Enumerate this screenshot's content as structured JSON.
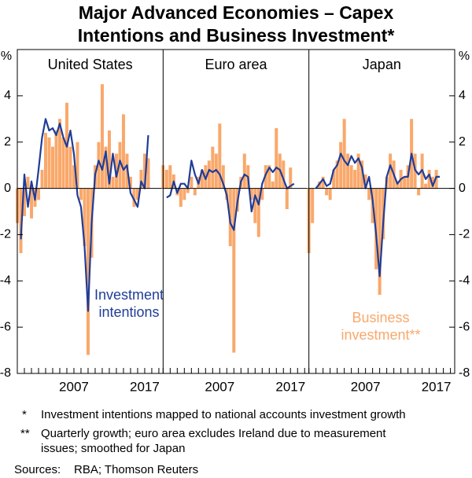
{
  "title": [
    "Major Advanced Economies – Capex",
    "Intentions and Business Investment*"
  ],
  "y_unit": "%",
  "notes": [
    {
      "mark": "*",
      "lines": [
        "Investment intentions mapped to national accounts investment growth"
      ]
    },
    {
      "mark": "**",
      "lines": [
        "Quarterly growth; euro area excludes Ireland due to measurement",
        "issues; smoothed for Japan"
      ]
    }
  ],
  "sources": {
    "label": "Sources:",
    "text": "RBA; Thomson Reuters"
  },
  "chart_data": [
    {
      "type": "combo",
      "title": "United States",
      "x": [
        1999,
        1999.5,
        2000,
        2000.5,
        2001,
        2001.5,
        2002,
        2002.5,
        2003,
        2003.5,
        2004,
        2004.5,
        2005,
        2005.5,
        2006,
        2006.5,
        2007,
        2007.5,
        2008,
        2008.5,
        2009,
        2009.5,
        2010,
        2010.5,
        2011,
        2011.5,
        2012,
        2012.5,
        2013,
        2013.5,
        2014,
        2014.5,
        2015,
        2015.5,
        2016,
        2016.5,
        2017,
        2017.5
      ],
      "xlim": [
        1999,
        2019.6
      ],
      "xticks": [
        2007,
        2017
      ],
      "xticks_minor": [
        1999,
        2000,
        2001,
        2002,
        2003,
        2004,
        2005,
        2006,
        2007,
        2008,
        2009,
        2010,
        2011,
        2012,
        2013,
        2014,
        2015,
        2016,
        2017,
        2018,
        2019
      ],
      "ylim": [
        -8,
        6
      ],
      "yticks": [
        -8,
        -6,
        -4,
        -2,
        0,
        2,
        4
      ],
      "series": [
        {
          "type": "bar",
          "color": "#f9a86b",
          "values": [
            -1.5,
            -2.8,
            -1.2,
            0.5,
            -1.3,
            -0.8,
            -0.5,
            0.8,
            2.4,
            2.2,
            1.8,
            2.5,
            3.0,
            2.2,
            3.7,
            1.8,
            1.0,
            2.0,
            -0.5,
            -2.5,
            -7.2,
            -3.0,
            1.0,
            2.0,
            4.5,
            1.8,
            2.5,
            0.5,
            1.5,
            2.0,
            3.2,
            1.5,
            0.5,
            -0.8,
            -0.5,
            0.8,
            1.5,
            1.3
          ]
        },
        {
          "type": "line",
          "color": "#1f3d99",
          "values": [
            null,
            -2.2,
            0.6,
            -0.8,
            0.3,
            -0.5,
            0.8,
            2.2,
            3.0,
            2.5,
            2.6,
            2.3,
            2.8,
            2.2,
            1.8,
            2.5,
            1.5,
            -0.3,
            -0.8,
            -2.5,
            -5.3,
            -1.5,
            0.6,
            1.2,
            0.8,
            1.6,
            0.2,
            1.5,
            0.5,
            1.2,
            0.8,
            1.0,
            -0.2,
            -0.5,
            -0.8,
            0.3,
            0.0,
            2.3
          ]
        }
      ],
      "annotation": {
        "color": "#1f3d99",
        "lines": [
          "Investment",
          "intentions"
        ]
      }
    },
    {
      "type": "combo",
      "title": "Euro area",
      "x": [
        1999,
        1999.5,
        2000,
        2000.5,
        2001,
        2001.5,
        2002,
        2002.5,
        2003,
        2003.5,
        2004,
        2004.5,
        2005,
        2005.5,
        2006,
        2006.5,
        2007,
        2007.5,
        2008,
        2008.5,
        2009,
        2009.5,
        2010,
        2010.5,
        2011,
        2011.5,
        2012,
        2012.5,
        2013,
        2013.5,
        2014,
        2014.5,
        2015,
        2015.5,
        2016,
        2016.5,
        2017,
        2017.5
      ],
      "xlim": [
        1999,
        2019.6
      ],
      "xticks": [
        2007,
        2017
      ],
      "xticks_minor": [
        1999,
        2000,
        2001,
        2002,
        2003,
        2004,
        2005,
        2006,
        2007,
        2008,
        2009,
        2010,
        2011,
        2012,
        2013,
        2014,
        2015,
        2016,
        2017,
        2018,
        2019
      ],
      "ylim": [
        -8,
        6
      ],
      "yticks": [
        -8,
        -6,
        -4,
        -2,
        0,
        2,
        4
      ],
      "series": [
        {
          "type": "bar",
          "color": "#f9a86b",
          "values": [
            1.0,
            0.8,
            1.0,
            0.6,
            -0.3,
            -0.8,
            -0.5,
            -0.2,
            0.5,
            -0.3,
            0.5,
            0.8,
            1.0,
            1.2,
            1.8,
            1.5,
            2.8,
            1.0,
            -0.5,
            -2.5,
            -7.1,
            -1.0,
            0.5,
            1.5,
            1.0,
            -0.5,
            -1.5,
            -2.1,
            -0.5,
            1.0,
            1.0,
            0.3,
            2.6,
            1.5,
            1.2,
            -0.9,
            0.9,
            null
          ]
        },
        {
          "type": "line",
          "color": "#1f3d99",
          "values": [
            null,
            -0.4,
            -0.3,
            0.3,
            -0.2,
            0.2,
            0.2,
            0.0,
            1.2,
            0.6,
            0.2,
            0.8,
            0.4,
            0.8,
            0.7,
            0.8,
            0.6,
            0.2,
            -0.3,
            -1.5,
            -1.8,
            -0.6,
            0.3,
            0.6,
            0.5,
            -1.0,
            -0.3,
            -0.7,
            0.2,
            0.6,
            0.9,
            0.7,
            0.9,
            0.8,
            0.4,
            0.0,
            0.1,
            0.2
          ]
        }
      ]
    },
    {
      "type": "combo",
      "title": "Japan",
      "x": [
        1999,
        1999.5,
        2000,
        2000.5,
        2001,
        2001.5,
        2002,
        2002.5,
        2003,
        2003.5,
        2004,
        2004.5,
        2005,
        2005.5,
        2006,
        2006.5,
        2007,
        2007.5,
        2008,
        2008.5,
        2009,
        2009.5,
        2010,
        2010.5,
        2011,
        2011.5,
        2012,
        2012.5,
        2013,
        2013.5,
        2014,
        2014.5,
        2015,
        2015.5,
        2016,
        2016.5,
        2017,
        2017.5
      ],
      "xlim": [
        1999,
        2019.6
      ],
      "xticks": [
        2007,
        2017
      ],
      "xticks_minor": [
        1999,
        2000,
        2001,
        2002,
        2003,
        2004,
        2005,
        2006,
        2007,
        2008,
        2009,
        2010,
        2011,
        2012,
        2013,
        2014,
        2015,
        2016,
        2017,
        2018,
        2019
      ],
      "ylim": [
        -8,
        6
      ],
      "yticks": [
        -8,
        -6,
        -4,
        -2,
        0,
        2,
        4
      ],
      "series": [
        {
          "type": "bar",
          "color": "#f9a86b",
          "values": [
            -2.8,
            -1.5,
            0.0,
            0.3,
            0.5,
            -0.3,
            -0.5,
            0.8,
            1.2,
            2.0,
            3.0,
            1.5,
            1.0,
            0.8,
            1.5,
            1.2,
            0.6,
            -0.5,
            -1.5,
            -3.5,
            -4.6,
            -2.2,
            0.5,
            1.5,
            1.2,
            0.3,
            0.8,
            0.5,
            1.0,
            3.0,
            1.5,
            -0.3,
            1.5,
            0.2,
            0.8,
            0.5,
            0.8,
            null
          ]
        },
        {
          "type": "line",
          "color": "#1f3d99",
          "values": [
            null,
            null,
            0.0,
            0.2,
            0.4,
            0.1,
            0.2,
            0.8,
            1.0,
            1.5,
            1.2,
            1.0,
            1.4,
            1.1,
            1.3,
            0.9,
            0.0,
            0.5,
            -0.5,
            -2.0,
            -3.8,
            -1.5,
            0.5,
            1.0,
            0.6,
            0.2,
            0.4,
            0.5,
            0.5,
            1.5,
            0.8,
            0.6,
            0.8,
            0.4,
            0.6,
            0.1,
            0.5,
            0.5
          ]
        }
      ],
      "annotation": {
        "color": "#f9a86b",
        "lines": [
          "Business",
          "investment**"
        ]
      }
    }
  ]
}
